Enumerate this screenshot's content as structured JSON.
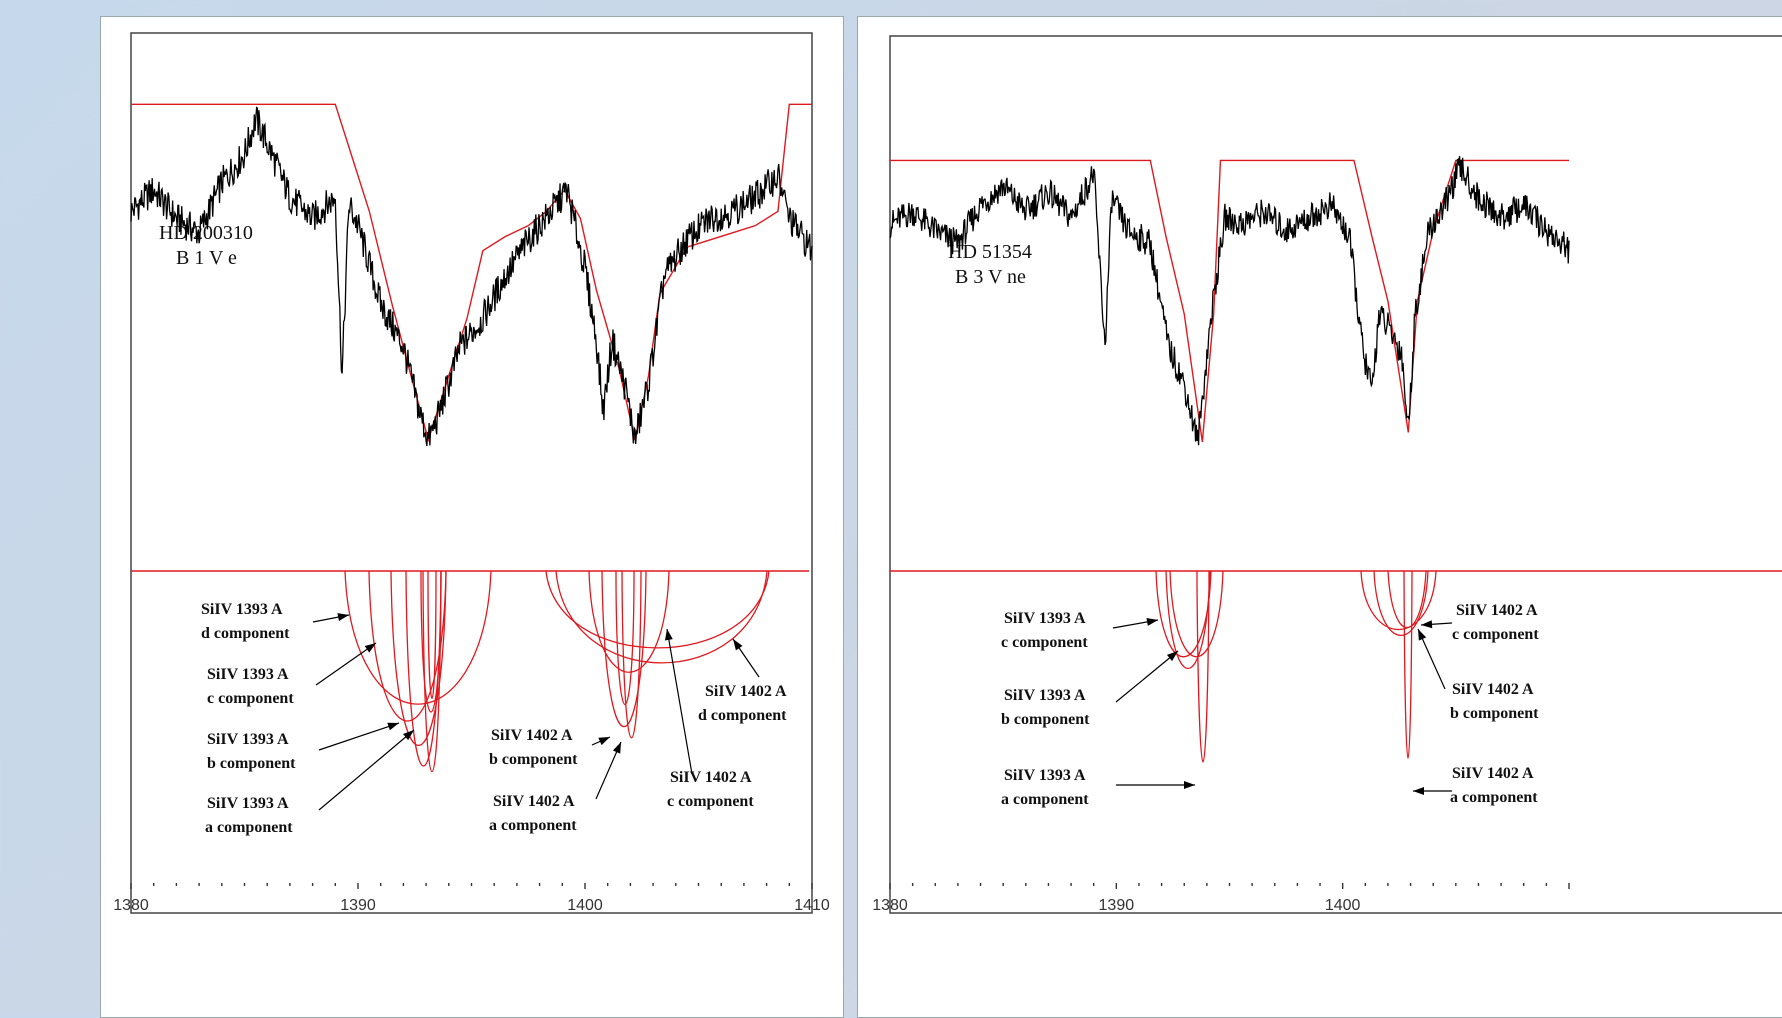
{
  "chart_data": [
    {
      "type": "line",
      "panel": "left",
      "star_name": "HD 200310",
      "star_type": "B 1 V e",
      "x_ticks": [
        "1380",
        "1390",
        "1400",
        "1410"
      ],
      "xlim": [
        1380,
        1410
      ],
      "series": [
        {
          "role": "observed",
          "x": [
            1380,
            1381,
            1382,
            1383,
            1384,
            1385,
            1385.5,
            1386,
            1387,
            1388,
            1389,
            1389.3,
            1389.6,
            1390,
            1391,
            1392,
            1392.7,
            1393.1,
            1393.5,
            1394.5,
            1395.5,
            1396.5,
            1397.5,
            1398.5,
            1399.2,
            1400,
            1400.5,
            1400.8,
            1401.2,
            1401.8,
            1402.2,
            1402.8,
            1403.5,
            1404.5,
            1405.5,
            1406.5,
            1407.5,
            1408.5,
            1409,
            1410
          ],
          "y": [
            0.66,
            0.72,
            0.64,
            0.6,
            0.74,
            0.82,
            0.92,
            0.85,
            0.7,
            0.64,
            0.7,
            0.2,
            0.68,
            0.62,
            0.4,
            0.28,
            0.1,
            0.02,
            0.08,
            0.28,
            0.36,
            0.48,
            0.58,
            0.66,
            0.72,
            0.5,
            0.3,
            0.1,
            0.3,
            0.16,
            0.02,
            0.18,
            0.48,
            0.58,
            0.64,
            0.66,
            0.7,
            0.76,
            0.64,
            0.55
          ]
        },
        {
          "role": "model",
          "x": [
            1380,
            1389,
            1389.6,
            1390.5,
            1391.5,
            1392.5,
            1393.1,
            1393.8,
            1394.8,
            1395.5,
            1396.5,
            1397.5,
            1398.3,
            1399.1,
            1399.8,
            1400.5,
            1401.5,
            1402.2,
            1402.8,
            1403.3,
            1404.5,
            1405.5,
            1406.5,
            1407.5,
            1408.5,
            1409,
            1410
          ],
          "y": [
            0.96,
            0.96,
            0.84,
            0.66,
            0.4,
            0.16,
            0.02,
            0.16,
            0.36,
            0.55,
            0.59,
            0.62,
            0.66,
            0.72,
            0.64,
            0.44,
            0.22,
            0.02,
            0.2,
            0.43,
            0.56,
            0.58,
            0.6,
            0.62,
            0.66,
            0.96,
            0.96
          ]
        }
      ]
    },
    {
      "type": "line",
      "panel": "right",
      "star_name": "HD 51354",
      "star_type": "B 3 V ne",
      "x_ticks": [
        "1380",
        "1390",
        "1400"
      ],
      "xlim": [
        1380,
        1410
      ],
      "series": [
        {
          "role": "observed",
          "x": [
            1380,
            1381,
            1382,
            1383,
            1384,
            1385,
            1386,
            1387,
            1388,
            1389,
            1389.5,
            1389.8,
            1390.5,
            1391.5,
            1392.3,
            1393,
            1393.6,
            1394.2,
            1394.8,
            1395.5,
            1396.5,
            1397.5,
            1398.5,
            1399.5,
            1400.3,
            1400.9,
            1401.3,
            1401.6,
            1402,
            1402.6,
            1402.9,
            1403.2,
            1403.8,
            1404.5,
            1405.2,
            1406,
            1407,
            1408,
            1409,
            1410
          ],
          "y": [
            0.68,
            0.72,
            0.66,
            0.62,
            0.74,
            0.8,
            0.72,
            0.78,
            0.7,
            0.84,
            0.3,
            0.76,
            0.66,
            0.62,
            0.3,
            0.18,
            0.0,
            0.4,
            0.7,
            0.68,
            0.72,
            0.66,
            0.7,
            0.74,
            0.64,
            0.28,
            0.16,
            0.4,
            0.36,
            0.28,
            0.04,
            0.4,
            0.66,
            0.74,
            0.86,
            0.76,
            0.7,
            0.74,
            0.66,
            0.6
          ]
        },
        {
          "role": "model",
          "x": [
            1380,
            1391.5,
            1392.2,
            1393,
            1393.8,
            1394.3,
            1394.6,
            1396,
            1400.5,
            1401.3,
            1402,
            1402.9,
            1403.3,
            1404,
            1405,
            1410
          ],
          "y": [
            0.88,
            0.88,
            0.64,
            0.4,
            0.0,
            0.4,
            0.88,
            0.88,
            0.88,
            0.64,
            0.44,
            0.03,
            0.44,
            0.66,
            0.88,
            0.88
          ]
        }
      ]
    }
  ],
  "annotations_left": [
    {
      "line1": "SiIV 1393 A",
      "line2": "d component"
    },
    {
      "line1": "SiIV 1393 A",
      "line2": "c component"
    },
    {
      "line1": "SiIV 1393 A",
      "line2": "b component"
    },
    {
      "line1": "SiIV 1393 A",
      "line2": "a component"
    },
    {
      "line1": "SiIV 1402 A",
      "line2": "d component"
    },
    {
      "line1": "SiIV 1402 A",
      "line2": "b component"
    },
    {
      "line1": "SiIV 1402 A",
      "line2": "c component"
    },
    {
      "line1": "SiIV 1402 A",
      "line2": "a component"
    }
  ],
  "annotations_right": [
    {
      "line1": "SiIV 1393 A",
      "line2": "c component"
    },
    {
      "line1": "SiIV 1393 A",
      "line2": "b component"
    },
    {
      "line1": "SiIV 1393 A",
      "line2": "a component"
    },
    {
      "line1": "SiIV 1402 A",
      "line2": "c component"
    },
    {
      "line1": "SiIV 1402 A",
      "line2": "b component"
    },
    {
      "line1": "SiIV 1402 A",
      "line2": "a component"
    }
  ],
  "colors": {
    "observed": "#000000",
    "model": "#e0191f",
    "background": "#c9d8ea"
  }
}
